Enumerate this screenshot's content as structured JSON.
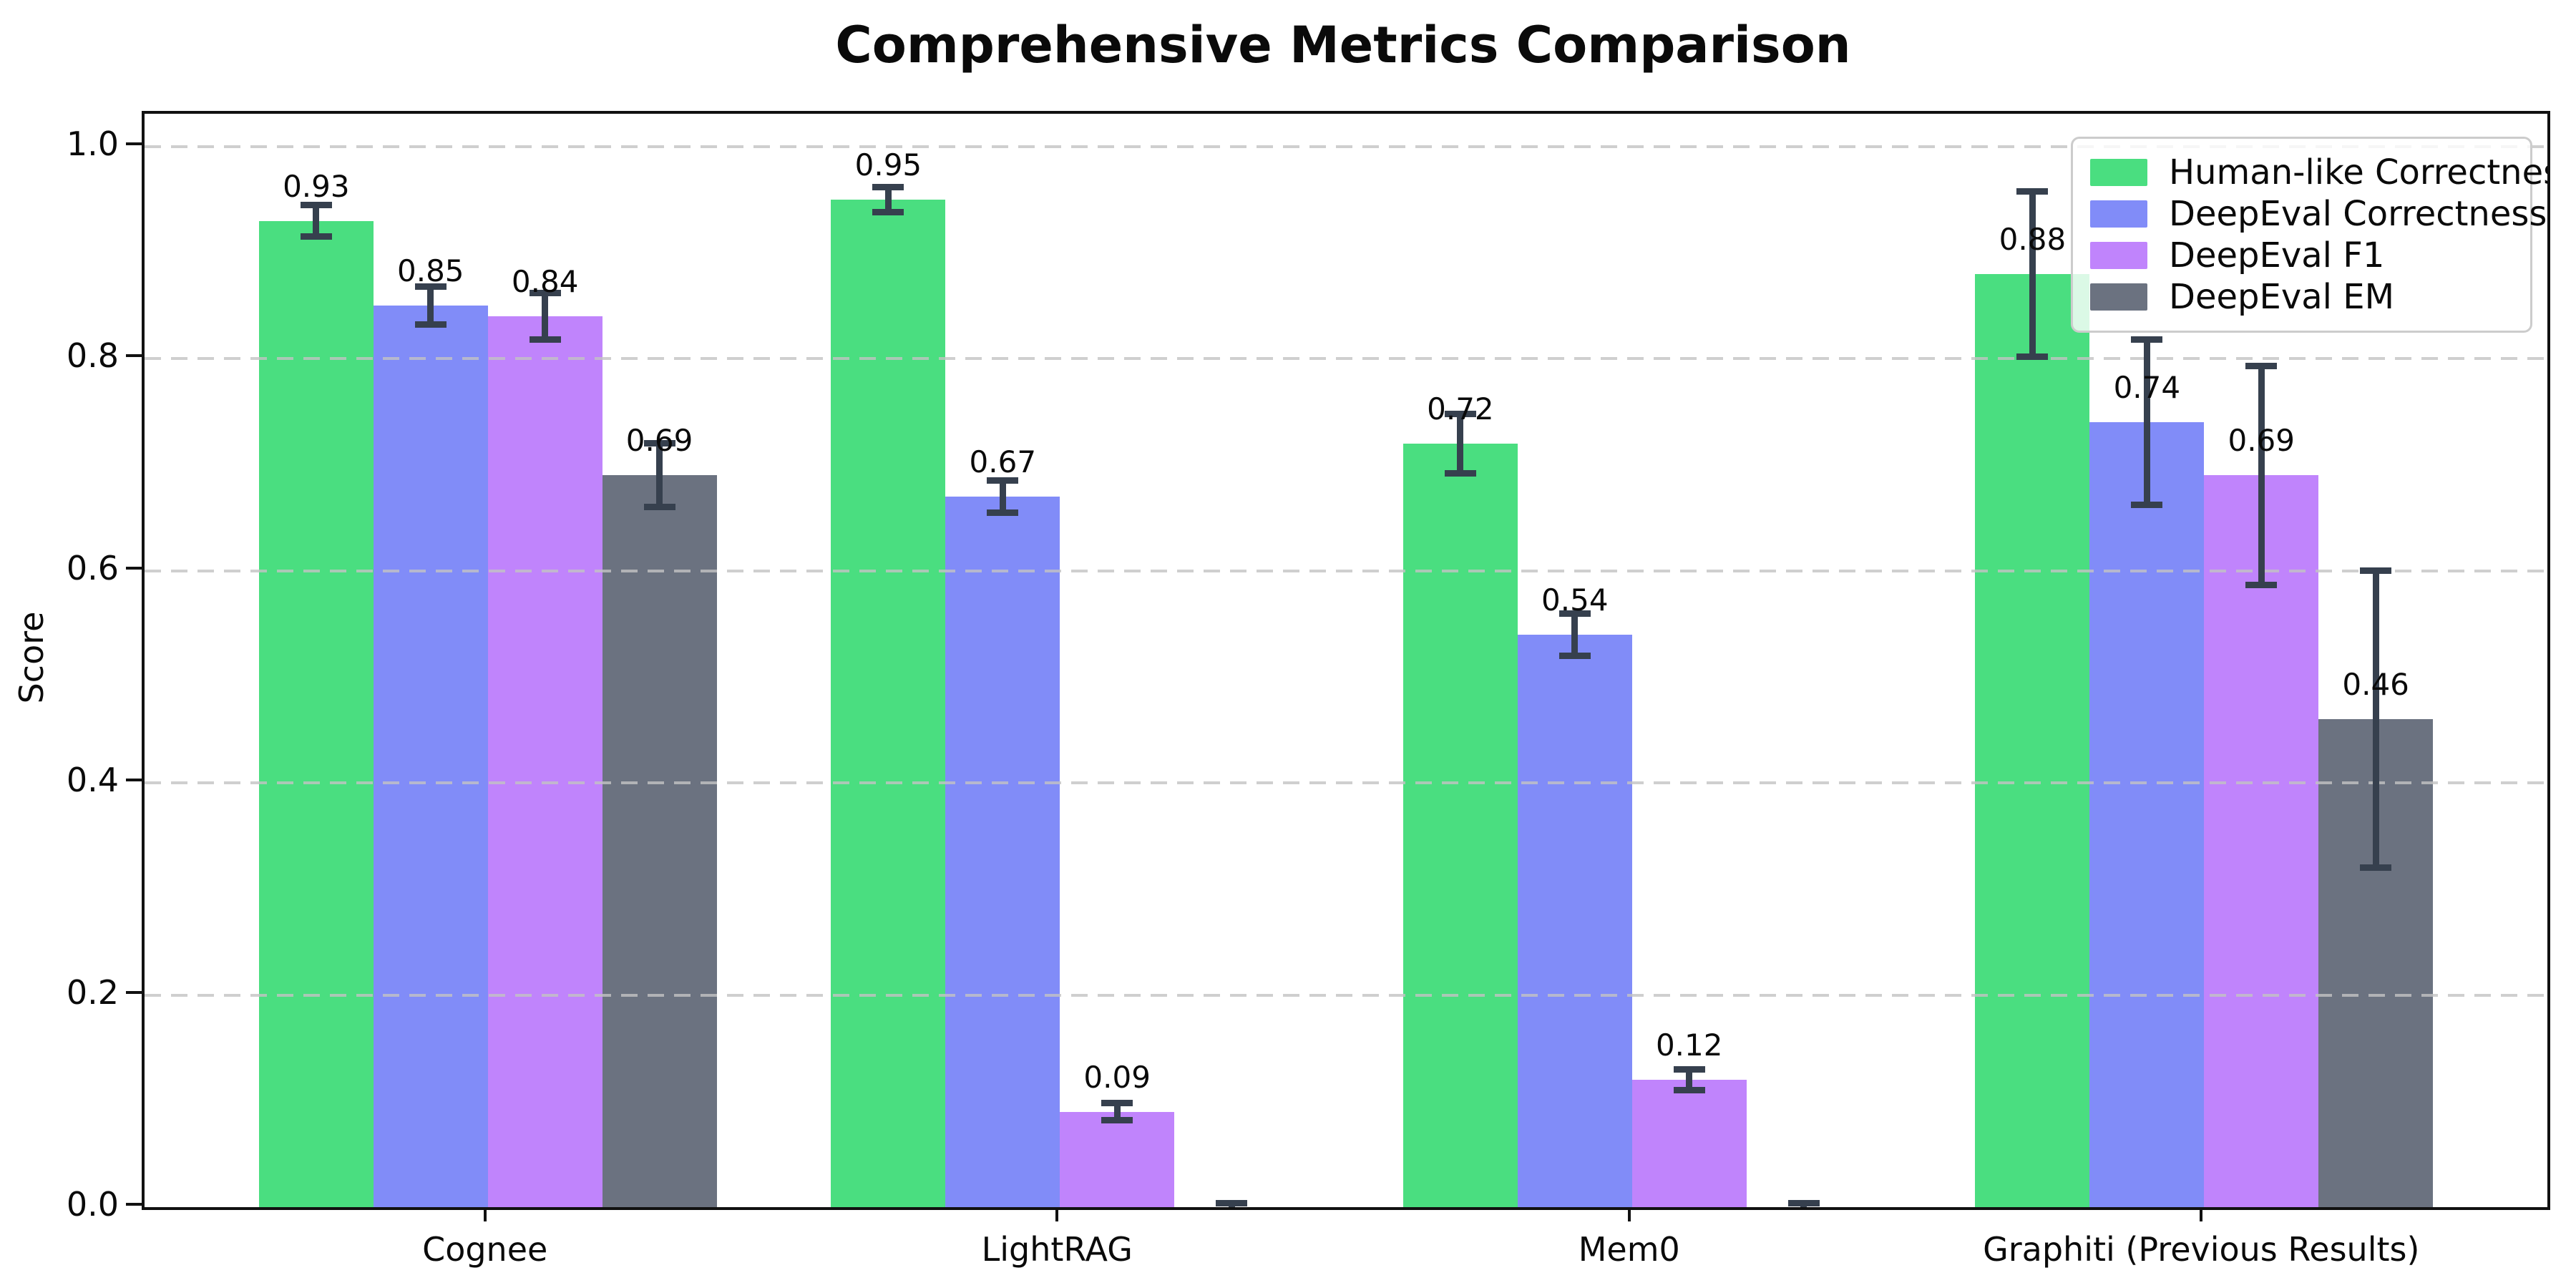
{
  "title": "Comprehensive Metrics Comparison",
  "chart_data": {
    "type": "bar",
    "title": "Comprehensive Metrics Comparison",
    "xlabel": "",
    "ylabel": "Score",
    "categories": [
      "Cognee",
      "LightRAG",
      "Mem0",
      "Graphiti (Previous Results)"
    ],
    "series": [
      {
        "name": "Human-like Correctness",
        "color": "#4ade80",
        "values": [
          0.93,
          0.95,
          0.72,
          0.88
        ],
        "errors": [
          0.015,
          0.012,
          0.028,
          0.078
        ],
        "labels": [
          "0.93",
          "0.95",
          "0.72",
          "0.88"
        ]
      },
      {
        "name": "DeepEval Correctness",
        "color": "#818cf8",
        "values": [
          0.85,
          0.67,
          0.54,
          0.74
        ],
        "errors": [
          0.018,
          0.015,
          0.02,
          0.078
        ],
        "labels": [
          "0.85",
          "0.67",
          "0.54",
          "0.74"
        ]
      },
      {
        "name": "DeepEval F1",
        "color": "#c084fc",
        "values": [
          0.84,
          0.09,
          0.12,
          0.69
        ],
        "errors": [
          0.022,
          0.008,
          0.01,
          0.103
        ],
        "labels": [
          "0.84",
          "0.09",
          "0.12",
          "0.69"
        ]
      },
      {
        "name": "DeepEval EM",
        "color": "#6b7280",
        "values": [
          0.69,
          0.0,
          0.0,
          0.46
        ],
        "errors": [
          0.03,
          0.004,
          0.004,
          0.14
        ],
        "labels": [
          "0.69",
          "",
          "",
          "0.46"
        ]
      }
    ],
    "yticks": [
      "0.0",
      "0.2",
      "0.4",
      "0.6",
      "0.8",
      "1.0"
    ],
    "ytick_values": [
      0.0,
      0.2,
      0.4,
      0.6,
      0.8,
      1.0
    ],
    "ylim": [
      0,
      1.031
    ],
    "bar_width_units": 0.2,
    "group_positions": [
      0,
      1,
      2,
      3
    ],
    "xlim": [
      -0.6,
      3.6
    ],
    "grid": "horizontal dashed, drawn over bars",
    "legend_position": "upper right",
    "error_bar_color": "#36404e",
    "legend_border_color": "#cccccc"
  }
}
